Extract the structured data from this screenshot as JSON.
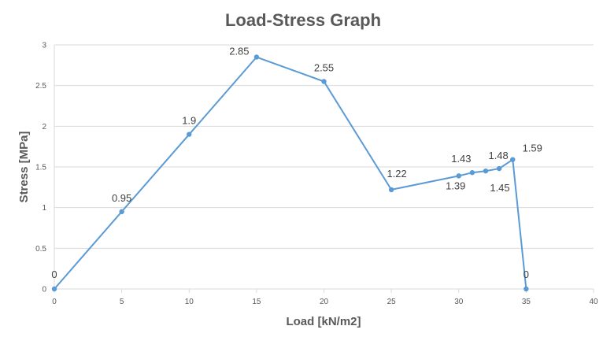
{
  "chart_data": {
    "type": "scatter",
    "title": "Load-Stress Graph",
    "xlabel": "Load [kN/m2]",
    "ylabel": "Stress [MPa]",
    "xlim": [
      0,
      40
    ],
    "ylim": [
      0,
      3
    ],
    "x_ticks": [
      "0",
      "5",
      "10",
      "15",
      "20",
      "25",
      "30",
      "35",
      "40"
    ],
    "y_ticks": [
      "0",
      "0.5",
      "1",
      "1.5",
      "2",
      "2.5",
      "3"
    ],
    "grid": "horizontal",
    "legend": "none",
    "color": "#5b9bd5",
    "series": [
      {
        "x": [
          0,
          5,
          10,
          15,
          20,
          25,
          30,
          31,
          32,
          33,
          34,
          35
        ],
        "y": [
          0,
          0.95,
          1.9,
          2.85,
          2.55,
          1.22,
          1.39,
          1.43,
          1.45,
          1.48,
          1.59,
          0
        ]
      }
    ],
    "data_labels": [
      "0",
      "0.95",
      "1.9",
      "2.85",
      "2.55",
      "1.22",
      "1.39",
      "1.43",
      "1.45",
      "1.48",
      "1.59",
      "0"
    ]
  }
}
